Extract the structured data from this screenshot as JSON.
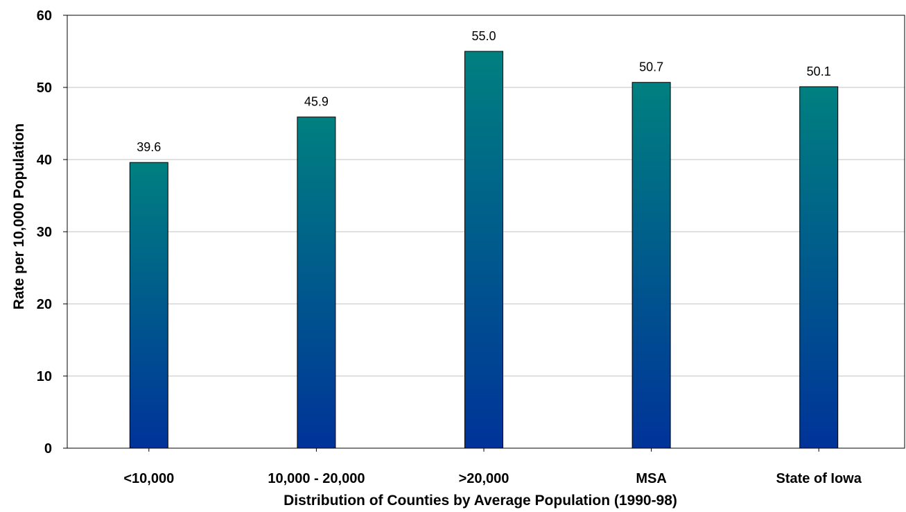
{
  "chart_data": {
    "type": "bar",
    "categories": [
      "<10,000",
      "10,000 - 20,000",
      ">20,000",
      "MSA",
      "State of Iowa"
    ],
    "values": [
      39.6,
      45.9,
      55.0,
      50.7,
      50.1
    ],
    "data_labels": [
      "39.6",
      "45.9",
      "55.0",
      "50.7",
      "50.1"
    ],
    "title": "",
    "xlabel": "Distribution of Counties by Average Population (1990-98)",
    "ylabel": "Rate per 10,000 Population",
    "ylim": [
      0,
      60
    ],
    "yticks": [
      0,
      10,
      20,
      30,
      40,
      50,
      60
    ],
    "grid": true,
    "legend": "none",
    "colors": {
      "bar_top": "#008080",
      "bar_bottom": "#003399",
      "gridline": "#c0c0c0",
      "axis": "#000000"
    }
  }
}
